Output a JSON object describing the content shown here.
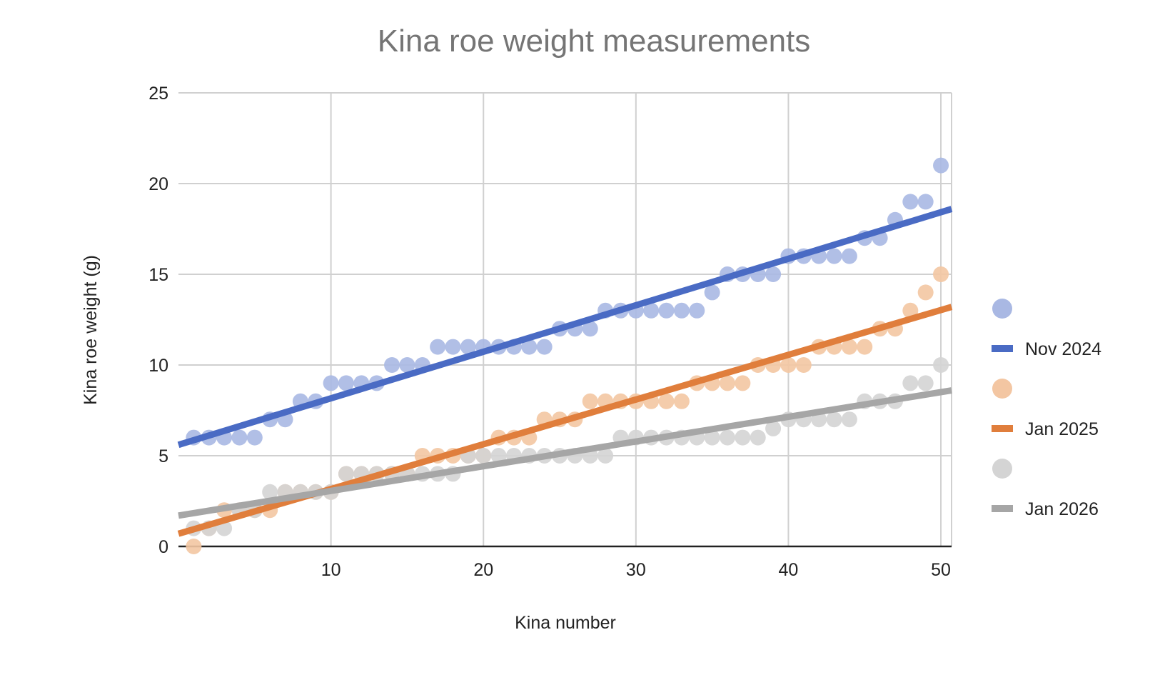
{
  "chart_data": {
    "type": "scatter",
    "title": "Kina roe weight measurements",
    "xlabel": "Kina number",
    "ylabel": "Kina roe weight (g)",
    "xlim": [
      0,
      50.7
    ],
    "ylim": [
      0,
      25
    ],
    "x_ticks": [
      10,
      20,
      30,
      40,
      50
    ],
    "y_ticks": [
      0,
      5,
      10,
      15,
      20,
      25
    ],
    "grid": true,
    "legend_position": "right",
    "series": [
      {
        "name": "",
        "kind": "points",
        "color": "#a9b8e3",
        "x": [
          1,
          2,
          3,
          4,
          5,
          6,
          7,
          8,
          9,
          10,
          11,
          12,
          13,
          14,
          15,
          16,
          17,
          18,
          19,
          20,
          21,
          22,
          23,
          24,
          25,
          26,
          27,
          28,
          29,
          30,
          31,
          32,
          33,
          34,
          35,
          36,
          37,
          38,
          39,
          40,
          41,
          42,
          43,
          44,
          45,
          46,
          47,
          48,
          49,
          50
        ],
        "y": [
          6,
          6,
          6,
          6,
          6,
          7,
          7,
          8,
          8,
          9,
          9,
          9,
          9,
          10,
          10,
          10,
          11,
          11,
          11,
          11,
          11,
          11,
          11,
          11,
          12,
          12,
          12,
          13,
          13,
          13,
          13,
          13,
          13,
          13,
          14,
          15,
          15,
          15,
          15,
          16,
          16,
          16,
          16,
          16,
          17,
          17,
          18,
          19,
          19,
          21
        ]
      },
      {
        "name": "Nov 2024",
        "kind": "trendline",
        "color": "#4a6bc4",
        "x": [
          0,
          50.7
        ],
        "y": [
          5.6,
          18.6
        ]
      },
      {
        "name": "",
        "kind": "points",
        "color": "#f3c6a2",
        "x": [
          1,
          2,
          3,
          4,
          5,
          6,
          7,
          8,
          9,
          10,
          11,
          12,
          13,
          14,
          15,
          16,
          17,
          18,
          19,
          20,
          21,
          22,
          23,
          24,
          25,
          26,
          27,
          28,
          29,
          30,
          31,
          32,
          33,
          34,
          35,
          36,
          37,
          38,
          39,
          40,
          41,
          42,
          43,
          44,
          45,
          46,
          47,
          48,
          49,
          50
        ],
        "y": [
          0,
          1,
          2,
          2,
          2,
          2,
          3,
          3,
          3,
          3,
          4,
          4,
          4,
          4,
          4,
          5,
          5,
          5,
          5,
          5,
          6,
          6,
          6,
          7,
          7,
          7,
          8,
          8,
          8,
          8,
          8,
          8,
          8,
          9,
          9,
          9,
          9,
          10,
          10,
          10,
          10,
          11,
          11,
          11,
          11,
          12,
          12,
          13,
          14,
          15
        ]
      },
      {
        "name": "Jan 2025",
        "kind": "trendline",
        "color": "#e07e3c",
        "x": [
          0,
          50.7
        ],
        "y": [
          0.7,
          13.2
        ]
      },
      {
        "name": "",
        "kind": "points",
        "color": "#d4d4d4",
        "x": [
          1,
          2,
          3,
          4,
          5,
          6,
          7,
          8,
          9,
          10,
          11,
          12,
          13,
          14,
          15,
          16,
          17,
          18,
          19,
          20,
          21,
          22,
          23,
          24,
          25,
          26,
          27,
          28,
          29,
          30,
          31,
          32,
          33,
          34,
          35,
          36,
          37,
          38,
          39,
          40,
          41,
          42,
          43,
          44,
          45,
          46,
          47,
          48,
          49,
          50
        ],
        "y": [
          1,
          1,
          1,
          2,
          2,
          3,
          3,
          3,
          3,
          3,
          4,
          4,
          4,
          4,
          4,
          4,
          4,
          4,
          5,
          5,
          5,
          5,
          5,
          5,
          5,
          5,
          5,
          5,
          6,
          6,
          6,
          6,
          6,
          6,
          6,
          6,
          6,
          6,
          6.5,
          7,
          7,
          7,
          7,
          7,
          8,
          8,
          8,
          9,
          9,
          10
        ]
      },
      {
        "name": "Jan 2026",
        "kind": "trendline",
        "color": "#a6a6a6",
        "x": [
          0,
          50.7
        ],
        "y": [
          1.7,
          8.6
        ]
      }
    ]
  }
}
